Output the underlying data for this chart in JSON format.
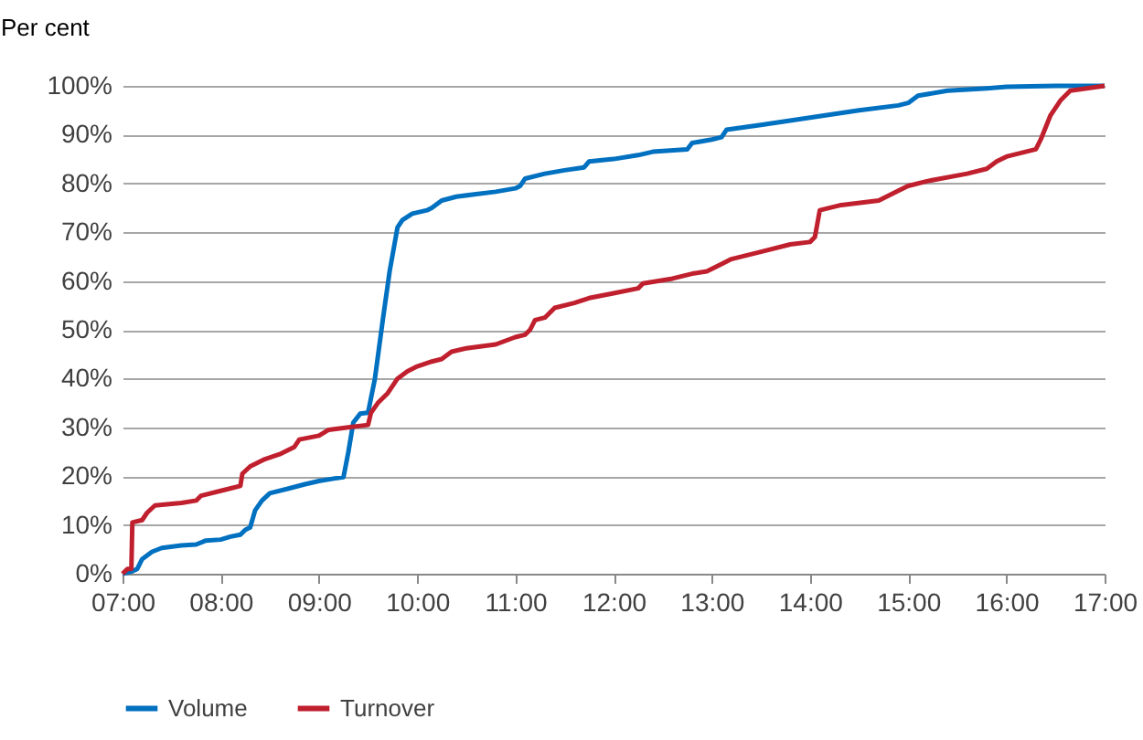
{
  "chart_data": {
    "type": "line",
    "ylabel": "Per cent",
    "xlim": [
      7,
      17
    ],
    "xticks": [
      {
        "value": 7,
        "label": "07:00"
      },
      {
        "value": 8,
        "label": "08:00"
      },
      {
        "value": 9,
        "label": "09:00"
      },
      {
        "value": 10,
        "label": "10:00"
      },
      {
        "value": 11,
        "label": "11:00"
      },
      {
        "value": 12,
        "label": "12:00"
      },
      {
        "value": 13,
        "label": "13:00"
      },
      {
        "value": 14,
        "label": "14:00"
      },
      {
        "value": 15,
        "label": "15:00"
      },
      {
        "value": 16,
        "label": "16:00"
      },
      {
        "value": 17,
        "label": "17:00"
      }
    ],
    "ylim": [
      0,
      100
    ],
    "yticks": [
      {
        "value": 0,
        "label": "0%"
      },
      {
        "value": 10,
        "label": "10%"
      },
      {
        "value": 20,
        "label": "20%"
      },
      {
        "value": 30,
        "label": "30%"
      },
      {
        "value": 40,
        "label": "40%"
      },
      {
        "value": 50,
        "label": "50%"
      },
      {
        "value": 60,
        "label": "60%"
      },
      {
        "value": 70,
        "label": "70%"
      },
      {
        "value": 80,
        "label": "80%"
      },
      {
        "value": 90,
        "label": "90%"
      },
      {
        "value": 100,
        "label": "100%"
      }
    ],
    "grid": "y",
    "legend": "bottom",
    "marker": "none",
    "line_style": "solid",
    "series": [
      {
        "name": "Volume",
        "color": "#0070c0",
        "x": [
          7.0,
          7.1,
          7.15,
          7.2,
          7.3,
          7.4,
          7.6,
          7.75,
          7.85,
          8.0,
          8.1,
          8.2,
          8.25,
          8.3,
          8.35,
          8.42,
          8.5,
          8.7,
          8.85,
          9.0,
          9.15,
          9.25,
          9.3,
          9.35,
          9.42,
          9.5,
          9.57,
          9.65,
          9.72,
          9.8,
          9.85,
          9.95,
          10.1,
          10.15,
          10.25,
          10.4,
          10.6,
          10.8,
          11.0,
          11.05,
          11.1,
          11.3,
          11.5,
          11.7,
          11.75,
          12.0,
          12.25,
          12.4,
          12.75,
          12.8,
          13.0,
          13.1,
          13.15,
          13.5,
          14.0,
          14.5,
          14.9,
          15.0,
          15.1,
          15.4,
          15.8,
          16.0,
          16.5,
          17.0
        ],
        "values": [
          0,
          0.5,
          1,
          3,
          4.5,
          5.3,
          5.8,
          6,
          6.8,
          7,
          7.6,
          8,
          9,
          9.5,
          13,
          15,
          16.5,
          17.5,
          18.3,
          19,
          19.5,
          19.8,
          25,
          31,
          32.8,
          33,
          40,
          52,
          62,
          71,
          72.5,
          73.8,
          74.5,
          75,
          76.5,
          77.3,
          77.8,
          78.3,
          79,
          79.5,
          81,
          82,
          82.7,
          83.3,
          84.5,
          85,
          85.8,
          86.5,
          87,
          88.3,
          89,
          89.5,
          91,
          92,
          93.5,
          95,
          96,
          96.5,
          98,
          99,
          99.5,
          99.8,
          100,
          100
        ]
      },
      {
        "name": "Turnover",
        "color": "#c0202e",
        "x": [
          7.0,
          7.05,
          7.09,
          7.1,
          7.2,
          7.25,
          7.33,
          7.6,
          7.75,
          7.8,
          8.0,
          8.2,
          8.22,
          8.3,
          8.45,
          8.6,
          8.75,
          8.8,
          9.0,
          9.1,
          9.3,
          9.5,
          9.53,
          9.6,
          9.7,
          9.8,
          9.9,
          10.0,
          10.15,
          10.25,
          10.35,
          10.5,
          10.8,
          11.0,
          11.1,
          11.15,
          11.2,
          11.3,
          11.4,
          11.6,
          11.75,
          12.0,
          12.25,
          12.3,
          12.6,
          12.8,
          12.95,
          13.1,
          13.2,
          13.5,
          13.8,
          14.0,
          14.05,
          14.1,
          14.3,
          14.7,
          14.9,
          15.0,
          15.2,
          15.6,
          15.8,
          15.9,
          16.0,
          16.3,
          16.35,
          16.45,
          16.55,
          16.65,
          17.0
        ],
        "values": [
          0,
          1,
          1,
          10.5,
          11,
          12.5,
          14,
          14.5,
          15,
          16,
          17,
          18,
          20.5,
          22,
          23.5,
          24.5,
          26,
          27.5,
          28.3,
          29.5,
          30,
          30.5,
          33,
          35,
          37,
          40,
          41.5,
          42.5,
          43.5,
          44,
          45.5,
          46.2,
          47,
          48.5,
          49,
          50,
          52,
          52.5,
          54.5,
          55.5,
          56.5,
          57.5,
          58.5,
          59.5,
          60.5,
          61.5,
          62,
          63.5,
          64.5,
          66,
          67.5,
          68,
          69,
          74.5,
          75.5,
          76.5,
          78.5,
          79.5,
          80.5,
          82,
          83,
          84.5,
          85.5,
          87,
          89,
          94,
          97,
          99,
          100
        ]
      }
    ]
  }
}
